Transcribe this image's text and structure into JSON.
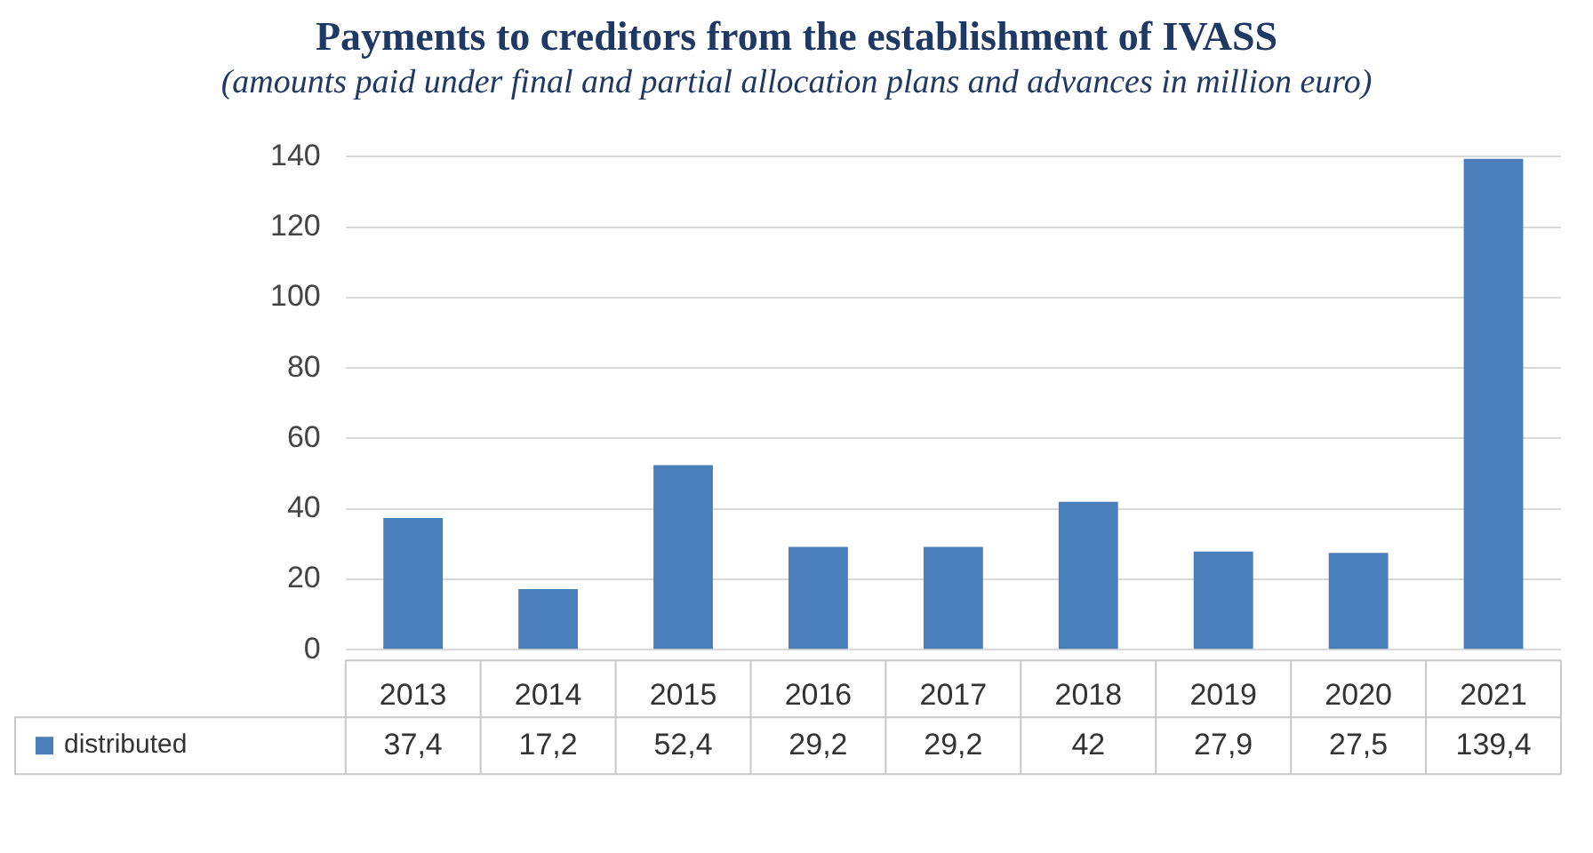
{
  "chart_data": {
    "type": "bar",
    "title": "Payments to creditors from the establishment of IVASS",
    "subtitle": "(amounts paid under final and partial allocation plans and advances in million euro)",
    "categories": [
      "2013",
      "2014",
      "2015",
      "2016",
      "2017",
      "2018",
      "2019",
      "2020",
      "2021"
    ],
    "series": [
      {
        "name": "distributed",
        "color": "#4a7ebb",
        "values": [
          37.4,
          17.2,
          52.4,
          29.2,
          29.2,
          42,
          27.9,
          27.5,
          139.4
        ],
        "value_labels": [
          "37,4",
          "17,2",
          "52,4",
          "29,2",
          "29,2",
          "42",
          "27,9",
          "27,5",
          "139,4"
        ]
      }
    ],
    "ylim": [
      0,
      140
    ],
    "yticks": [
      0,
      20,
      40,
      60,
      80,
      100,
      120,
      140
    ],
    "grid": "y",
    "legend": "bottom"
  }
}
